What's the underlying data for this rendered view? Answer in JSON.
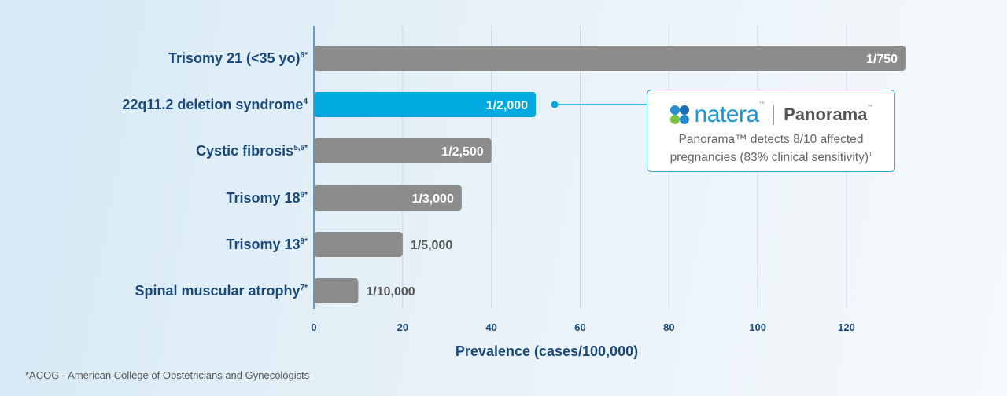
{
  "chart_data": {
    "type": "bar",
    "orientation": "horizontal",
    "categories": [
      {
        "label": "Trisomy 21 (<35 yo)",
        "sup": "8*"
      },
      {
        "label": "22q11.2 deletion syndrome",
        "sup": "4"
      },
      {
        "label": "Cystic fibrosis",
        "sup": "5,6*"
      },
      {
        "label": "Trisomy 18",
        "sup": "9*"
      },
      {
        "label": "Trisomy 13",
        "sup": "9*"
      },
      {
        "label": "Spinal muscular atrophy",
        "sup": "7*"
      }
    ],
    "values": [
      133.3,
      50,
      40,
      33.3,
      20,
      10
    ],
    "data_labels": [
      "1/750",
      "1/2,000",
      "1/2,500",
      "1/3,000",
      "1/5,000",
      "1/10,000"
    ],
    "highlighted_index": 1,
    "xlabel": "Prevalence (cases/100,000)",
    "xlim": [
      0,
      130
    ],
    "xticks": [
      0,
      20,
      40,
      60,
      80,
      100,
      120
    ],
    "grid": true,
    "colors": {
      "default": "#8c8c8c",
      "highlight": "#00a9e0",
      "text": "#1b4a7a"
    }
  },
  "callout": {
    "brand": "natera",
    "product": "Panorama",
    "description_line1": "Panorama™ detects 8/10 affected",
    "description_line2": "pregnancies (83% clinical sensitivity)",
    "description_sup": "1"
  },
  "footnote": "*ACOG - American College of Obstetricians and Gynecologists"
}
